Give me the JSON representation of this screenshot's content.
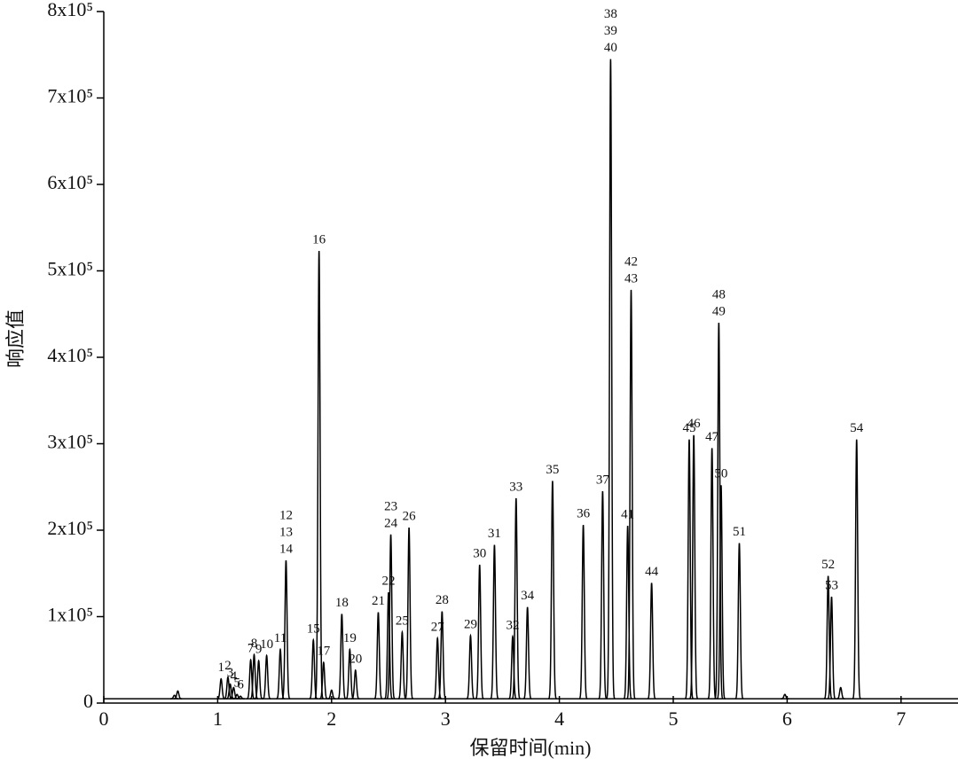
{
  "chart_data": {
    "type": "chromatogram",
    "x_label": "保留时间(min)",
    "y_label": "响应值",
    "xlim": [
      0,
      7.5
    ],
    "xticks": [
      0,
      1,
      2,
      3,
      4,
      5,
      6,
      7
    ],
    "ylim": [
      0,
      800000
    ],
    "yticks": [
      0,
      {
        "value": 100000,
        "label": "1x10⁵"
      },
      {
        "value": 200000,
        "label": "2x10⁵"
      },
      {
        "value": 300000,
        "label": "3x10⁵"
      },
      {
        "value": 400000,
        "label": "4x10⁵"
      },
      {
        "value": 500000,
        "label": "5x10⁵"
      },
      {
        "value": 600000,
        "label": "6x10⁵"
      },
      {
        "value": 700000,
        "label": "7x10⁵"
      },
      {
        "value": 800000,
        "label": "8x10⁵"
      }
    ],
    "baseline": 5000,
    "color": "#000000",
    "peaks": [
      {
        "x": 0.62,
        "y": 9000,
        "labels": []
      },
      {
        "x": 0.65,
        "y": 14000,
        "labels": []
      },
      {
        "x": 1.03,
        "y": 28000,
        "labels": [
          "1"
        ]
      },
      {
        "x": 1.09,
        "y": 30000,
        "labels": [
          "2"
        ]
      },
      {
        "x": 1.11,
        "y": 22000,
        "labels": [
          "3"
        ]
      },
      {
        "x": 1.14,
        "y": 18000,
        "labels": [
          "4"
        ]
      },
      {
        "x": 1.17,
        "y": 10000,
        "labels": [
          "5"
        ]
      },
      {
        "x": 1.2,
        "y": 8000,
        "labels": [
          "6"
        ]
      },
      {
        "x": 1.29,
        "y": 50000,
        "labels": [
          "7"
        ]
      },
      {
        "x": 1.32,
        "y": 56000,
        "labels": [
          "8"
        ]
      },
      {
        "x": 1.36,
        "y": 49000,
        "labels": [
          "9"
        ]
      },
      {
        "x": 1.43,
        "y": 55000,
        "labels": [
          "10"
        ]
      },
      {
        "x": 1.55,
        "y": 62000,
        "labels": [
          "11"
        ]
      },
      {
        "x": 1.6,
        "y": 165000,
        "labels": [
          "12",
          "13",
          "14"
        ]
      },
      {
        "x": 1.84,
        "y": 73000,
        "labels": [
          "15"
        ]
      },
      {
        "x": 1.89,
        "y": 523000,
        "labels": [
          "16"
        ]
      },
      {
        "x": 1.93,
        "y": 47000,
        "labels": [
          "17"
        ]
      },
      {
        "x": 2.0,
        "y": 15000,
        "labels": []
      },
      {
        "x": 2.09,
        "y": 103000,
        "labels": [
          "18"
        ]
      },
      {
        "x": 2.16,
        "y": 62000,
        "labels": [
          "19"
        ]
      },
      {
        "x": 2.21,
        "y": 38000,
        "labels": [
          "20"
        ]
      },
      {
        "x": 2.41,
        "y": 105000,
        "labels": [
          "21"
        ]
      },
      {
        "x": 2.5,
        "y": 128000,
        "labels": [
          "22"
        ]
      },
      {
        "x": 2.52,
        "y": 195000,
        "labels": [
          "23",
          "24"
        ]
      },
      {
        "x": 2.62,
        "y": 82000,
        "labels": [
          "25"
        ]
      },
      {
        "x": 2.68,
        "y": 203000,
        "labels": [
          "26"
        ]
      },
      {
        "x": 2.93,
        "y": 75000,
        "labels": [
          "27"
        ]
      },
      {
        "x": 2.97,
        "y": 106000,
        "labels": [
          "28"
        ]
      },
      {
        "x": 3.22,
        "y": 78000,
        "labels": [
          "29"
        ]
      },
      {
        "x": 3.3,
        "y": 160000,
        "labels": [
          "30"
        ]
      },
      {
        "x": 3.43,
        "y": 183000,
        "labels": [
          "31"
        ]
      },
      {
        "x": 3.59,
        "y": 77000,
        "labels": [
          "32"
        ]
      },
      {
        "x": 3.62,
        "y": 237000,
        "labels": [
          "33"
        ]
      },
      {
        "x": 3.72,
        "y": 111000,
        "labels": [
          "34"
        ]
      },
      {
        "x": 3.94,
        "y": 257000,
        "labels": [
          "35"
        ]
      },
      {
        "x": 4.21,
        "y": 206000,
        "labels": [
          "36"
        ]
      },
      {
        "x": 4.38,
        "y": 245000,
        "labels": [
          "37"
        ]
      },
      {
        "x": 4.45,
        "y": 745000,
        "labels": [
          "38",
          "39",
          "40"
        ]
      },
      {
        "x": 4.6,
        "y": 205000,
        "labels": [
          "41"
        ]
      },
      {
        "x": 4.63,
        "y": 478000,
        "labels": [
          "42",
          "43"
        ]
      },
      {
        "x": 4.81,
        "y": 139000,
        "labels": [
          "44"
        ]
      },
      {
        "x": 5.14,
        "y": 305000,
        "labels": [
          "45"
        ]
      },
      {
        "x": 5.18,
        "y": 310000,
        "labels": [
          "46"
        ]
      },
      {
        "x": 5.34,
        "y": 295000,
        "labels": [
          "47"
        ]
      },
      {
        "x": 5.4,
        "y": 440000,
        "labels": [
          "48",
          "49"
        ]
      },
      {
        "x": 5.42,
        "y": 252000,
        "labels": [
          "50"
        ]
      },
      {
        "x": 5.58,
        "y": 185000,
        "labels": [
          "51"
        ]
      },
      {
        "x": 5.98,
        "y": 10000,
        "labels": []
      },
      {
        "x": 6.36,
        "y": 147000,
        "labels": [
          "52"
        ]
      },
      {
        "x": 6.39,
        "y": 123000,
        "labels": [
          "53"
        ]
      },
      {
        "x": 6.47,
        "y": 18000,
        "labels": []
      },
      {
        "x": 6.61,
        "y": 305000,
        "labels": [
          "54"
        ]
      }
    ]
  }
}
